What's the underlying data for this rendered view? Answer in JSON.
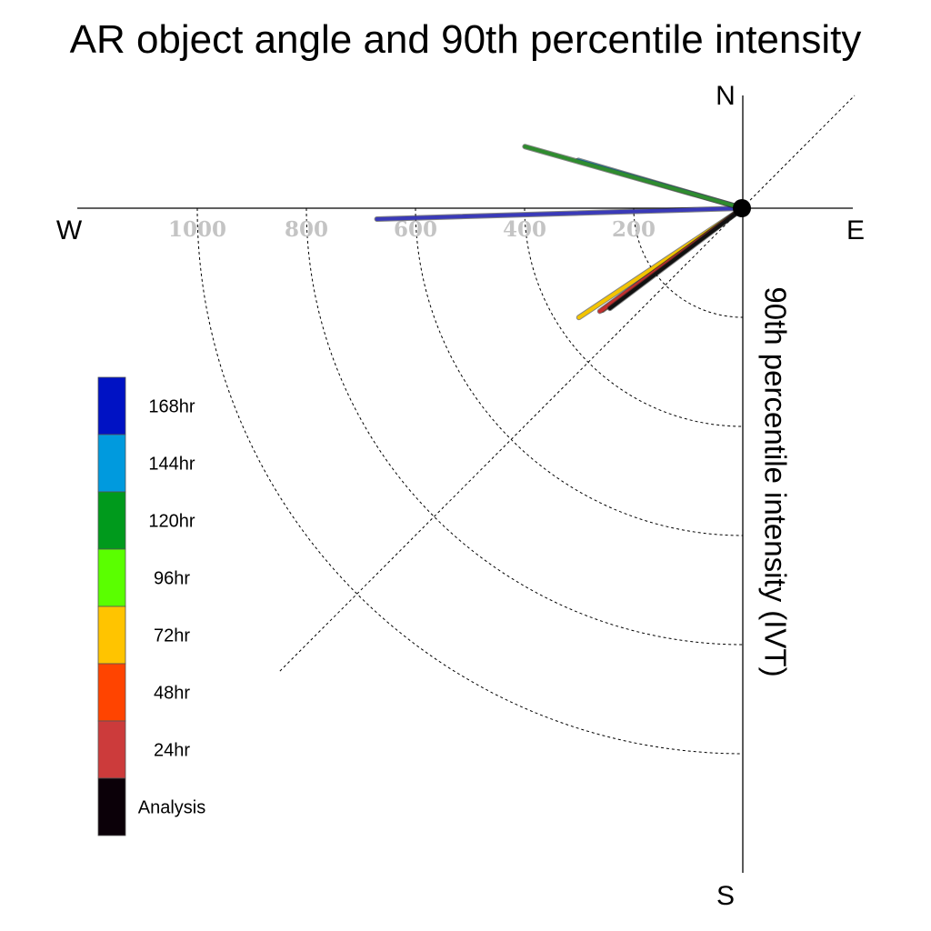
{
  "chart_data": {
    "type": "polar-quadrant",
    "title": "AR object angle and 90th percentile intensity",
    "ylabel": "90th percentile intensity (IVT)",
    "compass": {
      "north": "N",
      "south": "S",
      "east": "E",
      "west": "W"
    },
    "radial_ticks": [
      "200",
      "400",
      "600",
      "800",
      "1000"
    ],
    "radial_tick_values": [
      200,
      400,
      600,
      800,
      1000
    ],
    "rlim": [
      0,
      1200
    ],
    "angle_unit": "degrees clockwise from north",
    "legend": [
      {
        "label": "168hr",
        "color": "#0012c4"
      },
      {
        "label": "144hr",
        "color": "#009ade"
      },
      {
        "label": "120hr",
        "color": "#009a1c"
      },
      {
        "label": "96hr",
        "color": "#5aff00"
      },
      {
        "label": "72hr",
        "color": "#ffc400"
      },
      {
        "label": "48hr",
        "color": "#ff4400"
      },
      {
        "label": "24hr",
        "color": "#cc3b3b"
      },
      {
        "label": "Analysis",
        "color": "#0b0008"
      }
    ],
    "series": [
      {
        "name": "168hr",
        "color": "#3a3ab8",
        "angle_deg": 268.3,
        "intensity": 671
      },
      {
        "name": "144hr",
        "color": "#2a9fd6",
        "angle_deg": 286.2,
        "intensity": 314
      },
      {
        "name": "120hr",
        "color": "#2f8c2f",
        "angle_deg": 285.8,
        "intensity": 415
      },
      {
        "name": "72hr",
        "color": "#f3c400",
        "angle_deg": 236.3,
        "intensity": 361
      },
      {
        "name": "48hr",
        "color": "#d4400f",
        "angle_deg": 234.0,
        "intensity": 318
      },
      {
        "name": "24hr",
        "color": "#c42f2f",
        "angle_deg": 234.2,
        "intensity": 323
      },
      {
        "name": "Analysis",
        "color": "#111111",
        "angle_deg": 233.0,
        "intensity": 305
      }
    ]
  }
}
